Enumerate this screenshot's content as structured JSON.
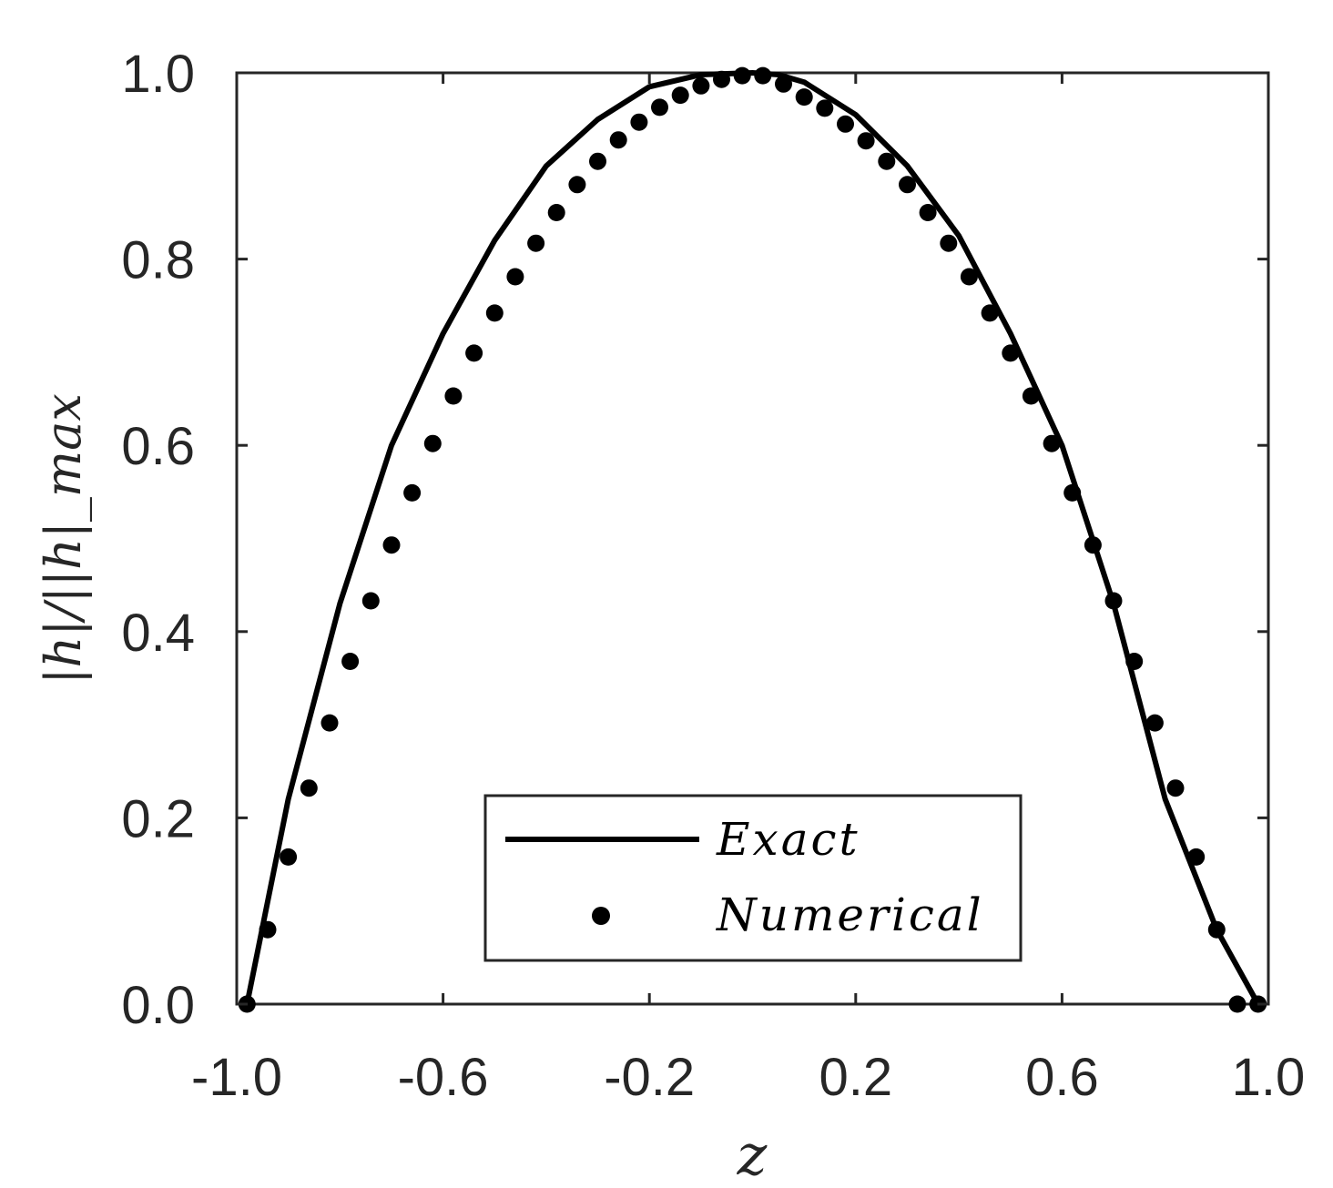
{
  "chart_data": {
    "type": "line",
    "title": "",
    "xlabel": "z",
    "ylabel": "|h|/||h|_max",
    "xlim": [
      -1.0,
      1.0
    ],
    "ylim": [
      0.0,
      1.0
    ],
    "x_ticks": [
      "-1.0",
      "-0.6",
      "-0.2",
      "0.2",
      "0.6",
      "1.0"
    ],
    "y_ticks": [
      "0.0",
      "0.2",
      "0.4",
      "0.6",
      "0.8",
      "1.0"
    ],
    "grid": false,
    "legend_position": "bottom-center",
    "series": [
      {
        "name": "Exact",
        "style": "solid-line",
        "color": "#000000",
        "x": [
          -0.98,
          -0.9,
          -0.8,
          -0.7,
          -0.6,
          -0.5,
          -0.4,
          -0.3,
          -0.2,
          -0.1,
          0.0,
          0.05,
          0.1,
          0.2,
          0.3,
          0.4,
          0.5,
          0.6,
          0.7,
          0.8,
          0.9,
          0.98
        ],
        "y": [
          0.0,
          0.22,
          0.43,
          0.6,
          0.72,
          0.82,
          0.9,
          0.95,
          0.985,
          0.998,
          1.0,
          0.998,
          0.99,
          0.955,
          0.9,
          0.825,
          0.72,
          0.6,
          0.43,
          0.22,
          0.08,
          0.0
        ]
      },
      {
        "name": "Numerical",
        "style": "markers",
        "color": "#000000",
        "x": [
          -0.98,
          -0.94,
          -0.9,
          -0.86,
          -0.82,
          -0.78,
          -0.74,
          -0.7,
          -0.66,
          -0.62,
          -0.58,
          -0.54,
          -0.5,
          -0.46,
          -0.42,
          -0.38,
          -0.34,
          -0.3,
          -0.26,
          -0.22,
          -0.18,
          -0.14,
          -0.1,
          -0.06,
          -0.02,
          0.02,
          0.06,
          0.1,
          0.14,
          0.18,
          0.22,
          0.26,
          0.3,
          0.34,
          0.38,
          0.42,
          0.46,
          0.5,
          0.54,
          0.58,
          0.62,
          0.66,
          0.7,
          0.74,
          0.78,
          0.82,
          0.86,
          0.9,
          0.94,
          0.98
        ],
        "y": [
          0.0,
          0.08,
          0.158,
          0.232,
          0.302,
          0.368,
          0.433,
          0.493,
          0.549,
          0.602,
          0.653,
          0.699,
          0.742,
          0.781,
          0.817,
          0.85,
          0.88,
          0.905,
          0.928,
          0.947,
          0.963,
          0.976,
          0.986,
          0.993,
          0.997,
          0.997,
          0.988,
          0.974,
          0.962,
          0.945,
          0.927,
          0.905,
          0.88,
          0.85,
          0.817,
          0.781,
          0.742,
          0.699,
          0.653,
          0.602,
          0.549,
          0.493,
          0.433,
          0.368,
          0.302,
          0.232,
          0.158,
          0.08,
          0.0,
          0.0
        ]
      }
    ]
  }
}
